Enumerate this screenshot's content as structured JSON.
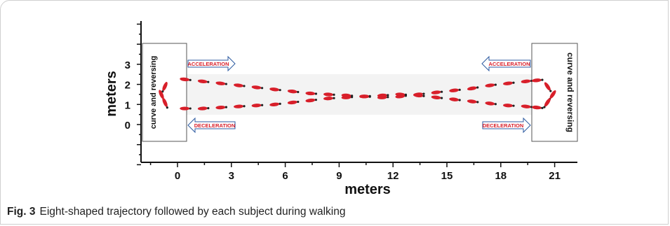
{
  "caption": {
    "figure_label": "Fig. 3",
    "text": "Eight-shaped trajectory followed by each subject during walking"
  },
  "axes": {
    "xlabel": "meters",
    "ylabel": "meters",
    "x_ticks": [
      "0",
      "3",
      "6",
      "9",
      "12",
      "15",
      "18",
      "21"
    ],
    "y_ticks": [
      "3",
      "2",
      "1",
      "0"
    ]
  },
  "zones": {
    "left": "curve and reversing",
    "right": "curve and reversing"
  },
  "arrows": {
    "left_top": "ACCELERATION",
    "left_bottom": "DECELERATION",
    "right_top": "ACCELERATION",
    "right_bottom": "DECELERATION"
  },
  "colors": {
    "footprint": "#d81f2a",
    "arrow_outline": "#2c5aa0",
    "arrow_text": "#d81f2a",
    "axis": "#111111"
  },
  "chart_data": {
    "type": "scatter",
    "xlabel": "meters",
    "ylabel": "meters",
    "xlim": [
      -1.8,
      22
    ],
    "ylim": [
      -2.2,
      5.5
    ],
    "x_ticks": [
      0,
      3,
      6,
      9,
      12,
      15,
      18,
      21
    ],
    "y_ticks": [
      0,
      1,
      2,
      3
    ],
    "series": [
      {
        "x": [
          0.4,
          1.4,
          2.4,
          3.4,
          4.4,
          5.4,
          6.4,
          7.4,
          8.4,
          9.4,
          10.4,
          11.4,
          12.4,
          13.4,
          14.4,
          15.4,
          16.4,
          17.4,
          18.4,
          19.4,
          20.0
        ],
        "y": [
          2.25,
          2.15,
          2.05,
          1.95,
          1.85,
          1.75,
          1.65,
          1.55,
          1.5,
          1.45,
          1.4,
          1.35,
          1.4,
          1.5,
          1.6,
          1.7,
          1.8,
          1.95,
          2.05,
          2.15,
          2.2
        ]
      },
      {
        "x": [
          0.4,
          1.4,
          2.4,
          3.4,
          4.4,
          5.4,
          6.4,
          7.4,
          8.4,
          9.4,
          10.4,
          11.4,
          12.4,
          13.4,
          14.4,
          15.4,
          16.4,
          17.4,
          18.4,
          19.4,
          20.0
        ],
        "y": [
          0.8,
          0.8,
          0.85,
          0.9,
          0.95,
          1.0,
          1.1,
          1.2,
          1.3,
          1.35,
          1.4,
          1.45,
          1.5,
          1.45,
          1.35,
          1.25,
          1.15,
          1.05,
          0.95,
          0.9,
          0.85
        ]
      },
      {
        "x": [
          -0.7,
          -0.9,
          -0.7
        ],
        "y": [
          1.9,
          1.5,
          1.1
        ]
      },
      {
        "x": [
          20.6,
          20.9,
          20.6
        ],
        "y": [
          1.9,
          1.5,
          1.1
        ]
      }
    ]
  }
}
